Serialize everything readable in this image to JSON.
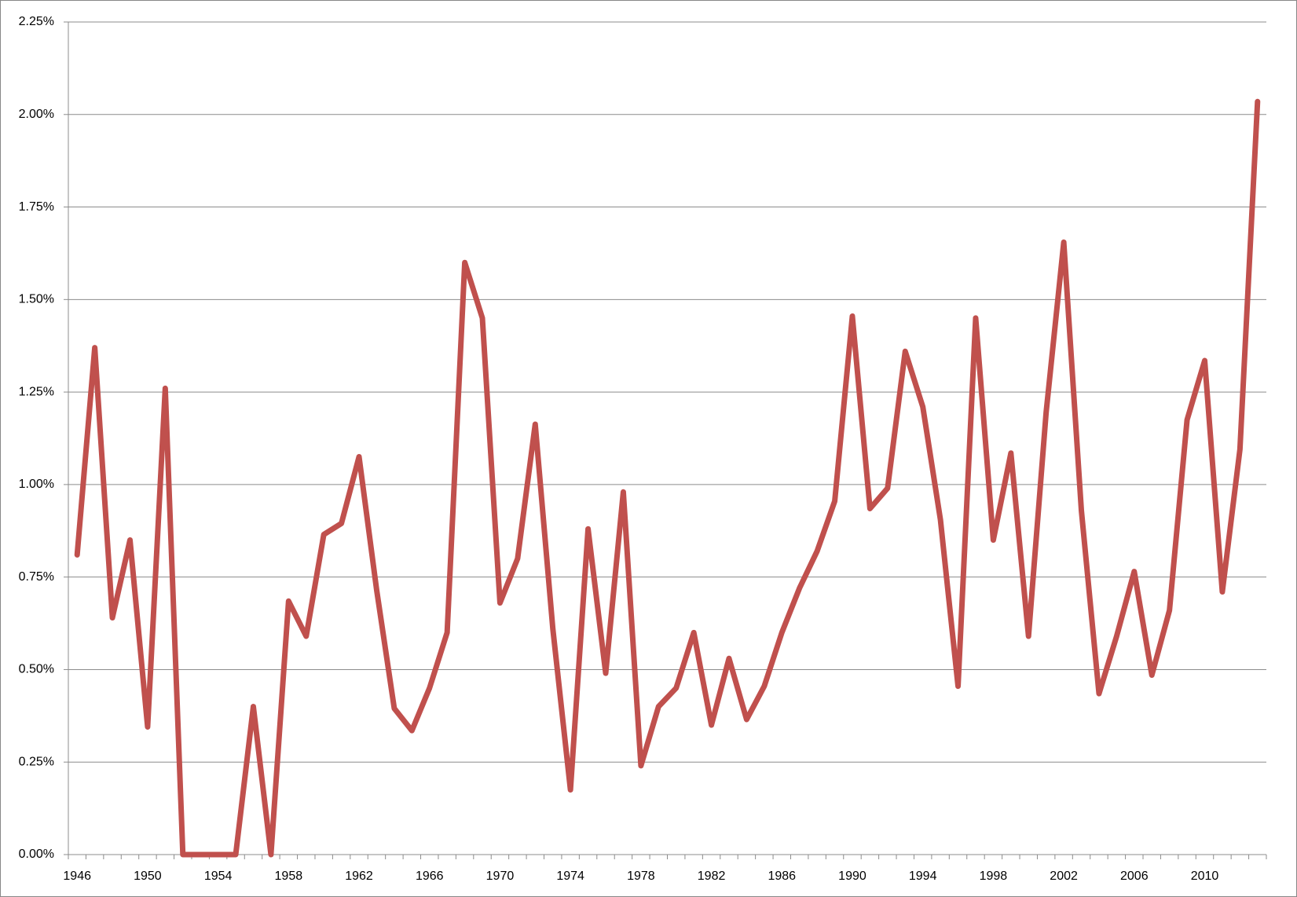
{
  "chart_data": {
    "type": "line",
    "categories": [
      "1946",
      null,
      null,
      null,
      "1950",
      null,
      null,
      null,
      "1954",
      null,
      null,
      null,
      "1958",
      null,
      null,
      null,
      "1962",
      null,
      null,
      null,
      "1966",
      null,
      null,
      null,
      "1970",
      null,
      null,
      null,
      "1974",
      null,
      null,
      null,
      "1978",
      null,
      null,
      null,
      "1982",
      null,
      null,
      null,
      "1986",
      null,
      null,
      null,
      "1990",
      null,
      null,
      null,
      "1994",
      null,
      null,
      null,
      "1998",
      null,
      null,
      null,
      "2002",
      null,
      null,
      null,
      "2006",
      null,
      null,
      null,
      "2010",
      null,
      null,
      null
    ],
    "series": [
      {
        "color": "#c0504d",
        "values": [
          0.81,
          1.37,
          0.64,
          0.85,
          0.345,
          1.26,
          0,
          0,
          0,
          0,
          0.4,
          0,
          0.685,
          0.59,
          0.865,
          0.895,
          1.075,
          0.715,
          0.395,
          0.335,
          0.45,
          0.6,
          1.6,
          1.45,
          0.68,
          0.8,
          1.163,
          0.61,
          0.175,
          0.88,
          0.49,
          0.98,
          0.24,
          0.4,
          0.45,
          0.6,
          0.35,
          0.53,
          0.365,
          0.455,
          0.6,
          0.72,
          0.82,
          0.955,
          1.455,
          0.935,
          0.99,
          1.36,
          1.21,
          0.905,
          0.455,
          1.45,
          0.85,
          1.085,
          0.59,
          1.195,
          1.655,
          0.93,
          0.435,
          0.59,
          0.765,
          0.485,
          0.66,
          1.175,
          1.335,
          0.71,
          1.095,
          2.035
        ]
      }
    ],
    "ylim": [
      0,
      2.25
    ],
    "yticks": [
      {
        "value": 0,
        "label": "0.00%"
      },
      {
        "value": 0.25,
        "label": "0.25%"
      },
      {
        "value": 0.5,
        "label": "0.50%"
      },
      {
        "value": 0.75,
        "label": "0.75%"
      },
      {
        "value": 1,
        "label": "1.00%"
      },
      {
        "value": 1.25,
        "label": "1.25%"
      },
      {
        "value": 1.5,
        "label": "1.50%"
      },
      {
        "value": 1.75,
        "label": "1.75%"
      },
      {
        "value": 2,
        "label": "2.00%"
      },
      {
        "value": 2.25,
        "label": "2.25%"
      }
    ],
    "grid": true
  }
}
